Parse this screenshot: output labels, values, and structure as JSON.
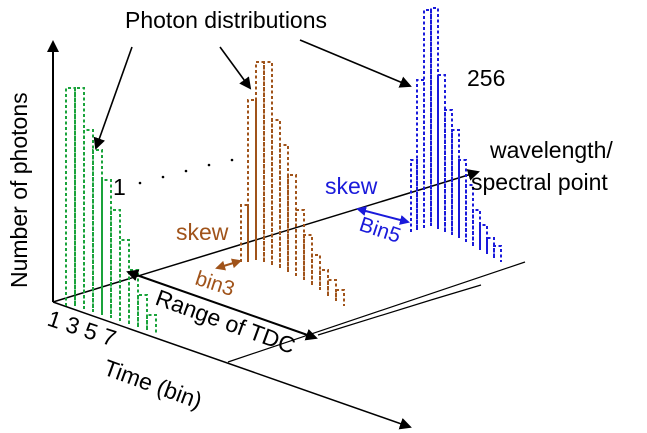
{
  "title": "Photon distributions",
  "labels": {
    "y_axis": "Number of photons",
    "x_axis": "Time (bin)",
    "depth_axis_line1": "wavelength/",
    "depth_axis_line2": "spectral point",
    "first_index": "1",
    "last_index": "256",
    "bin_ticks": "1 3 5 7",
    "range": "Range of TDC",
    "skew_brown": "skew",
    "bin_brown": "bin3",
    "skew_blue": "skew",
    "bin_blue": "Bin5"
  },
  "colors": {
    "green": "#1aa33b",
    "brown": "#a0531a",
    "blue": "#1a1adb",
    "axis": "#000000",
    "background": "#ffffff"
  }
}
